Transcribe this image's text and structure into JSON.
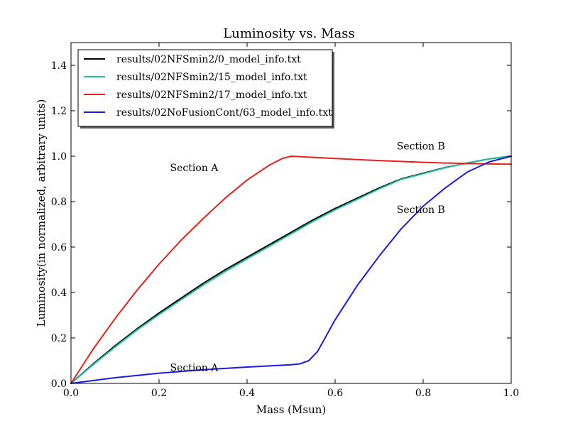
{
  "chart_data": {
    "type": "line",
    "title": "Luminosity vs. Mass",
    "xlabel": "Mass (Msun)",
    "ylabel": "Luminosity(in normalized, arbitrary units)",
    "xlim": [
      0.0,
      1.0
    ],
    "ylim": [
      0.0,
      1.5
    ],
    "xticks": [
      "0.0",
      "0.2",
      "0.4",
      "0.6",
      "0.8",
      "1.0"
    ],
    "yticks": [
      "0.0",
      "0.2",
      "0.4",
      "0.6",
      "0.8",
      "1.0",
      "1.2",
      "1.4"
    ],
    "grid": false,
    "legend_position": "top-left",
    "series": [
      {
        "name": "results/02NFSmin2/0_model_info.txt",
        "color": "#000000",
        "x": [
          0.0,
          0.05,
          0.1,
          0.15,
          0.2,
          0.25,
          0.3,
          0.35,
          0.4,
          0.45,
          0.5,
          0.55,
          0.6,
          0.65,
          0.7,
          0.75,
          0.8,
          0.85,
          0.9,
          0.95,
          1.0
        ],
        "y": [
          0.0,
          0.085,
          0.165,
          0.24,
          0.31,
          0.375,
          0.44,
          0.5,
          0.555,
          0.61,
          0.665,
          0.72,
          0.77,
          0.815,
          0.86,
          0.9,
          0.925,
          0.95,
          0.97,
          0.988,
          1.0
        ]
      },
      {
        "name": "results/02NFSmin2/15_model_info.txt",
        "color": "#1fbf9f",
        "x": [
          0.0,
          0.05,
          0.1,
          0.15,
          0.2,
          0.25,
          0.3,
          0.35,
          0.4,
          0.45,
          0.5,
          0.55,
          0.6,
          0.65,
          0.7,
          0.75,
          0.8,
          0.85,
          0.9,
          0.95,
          1.0
        ],
        "y": [
          0.0,
          0.082,
          0.16,
          0.235,
          0.303,
          0.368,
          0.432,
          0.492,
          0.548,
          0.603,
          0.658,
          0.713,
          0.764,
          0.81,
          0.856,
          0.898,
          0.923,
          0.949,
          0.97,
          0.988,
          1.0
        ]
      },
      {
        "name": "results/02NFSmin2/17_model_info.txt",
        "color": "#e8201a",
        "x": [
          0.0,
          0.05,
          0.1,
          0.15,
          0.2,
          0.25,
          0.3,
          0.35,
          0.4,
          0.45,
          0.48,
          0.5,
          0.55,
          0.6,
          0.65,
          0.7,
          0.75,
          0.8,
          0.85,
          0.9,
          0.95,
          1.0
        ],
        "y": [
          0.0,
          0.15,
          0.285,
          0.41,
          0.525,
          0.63,
          0.725,
          0.815,
          0.895,
          0.96,
          0.99,
          1.0,
          0.995,
          0.99,
          0.985,
          0.981,
          0.977,
          0.973,
          0.97,
          0.968,
          0.966,
          0.965
        ]
      },
      {
        "name": "results/02NoFusionCont/63_model_info.txt",
        "color": "#1a1ae0",
        "x": [
          0.0,
          0.1,
          0.2,
          0.3,
          0.4,
          0.45,
          0.5,
          0.52,
          0.54,
          0.56,
          0.58,
          0.6,
          0.65,
          0.7,
          0.75,
          0.8,
          0.85,
          0.9,
          0.95,
          1.0
        ],
        "y": [
          0.0,
          0.025,
          0.045,
          0.06,
          0.072,
          0.077,
          0.082,
          0.086,
          0.1,
          0.14,
          0.21,
          0.28,
          0.43,
          0.56,
          0.68,
          0.78,
          0.86,
          0.93,
          0.975,
          1.0
        ]
      }
    ],
    "annotations": [
      {
        "text": "Section A",
        "x": 0.225,
        "y": 0.935
      },
      {
        "text": "Section B",
        "x": 0.74,
        "y": 1.03
      },
      {
        "text": "Section B",
        "x": 0.74,
        "y": 0.75
      },
      {
        "text": "Section A",
        "x": 0.225,
        "y": 0.055
      }
    ]
  }
}
